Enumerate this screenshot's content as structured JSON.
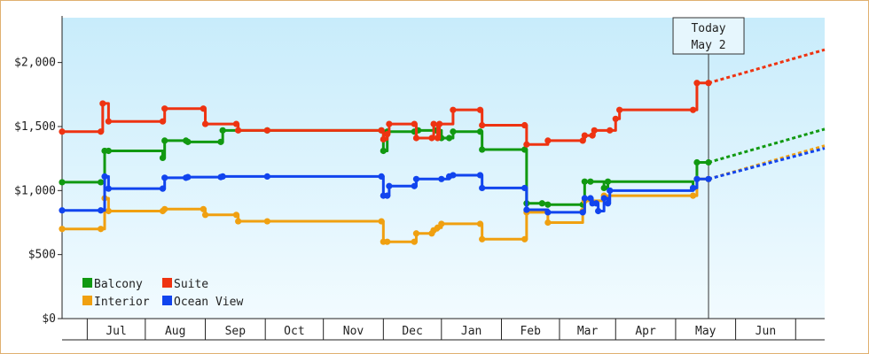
{
  "chart_data": {
    "type": "line",
    "step": true,
    "title": "",
    "xlabel": "",
    "ylabel": "",
    "x_range": [
      "2022-06-02",
      "2023-07-01"
    ],
    "ylim": [
      0,
      2350
    ],
    "yticks": [
      0,
      500,
      1000,
      1500,
      2000
    ],
    "ytick_labels": [
      "$0",
      "$500",
      "$1,000",
      "$1,500",
      "$2,000"
    ],
    "month_ticks": [
      {
        "label": "Jul",
        "start": "2022-06-15",
        "end": "2022-07-15"
      },
      {
        "label": "Aug",
        "start": "2022-07-15",
        "end": "2022-08-15"
      },
      {
        "label": "Sep",
        "start": "2022-08-15",
        "end": "2022-09-15"
      },
      {
        "label": "Oct",
        "start": "2022-09-15",
        "end": "2022-10-15"
      },
      {
        "label": "Nov",
        "start": "2022-10-15",
        "end": "2022-11-15"
      },
      {
        "label": "Dec",
        "start": "2022-11-15",
        "end": "2022-12-15"
      },
      {
        "label": "Jan",
        "start": "2022-12-15",
        "end": "2023-01-15"
      },
      {
        "label": "Feb",
        "start": "2023-01-15",
        "end": "2023-02-14"
      },
      {
        "label": "Mar",
        "start": "2023-02-14",
        "end": "2023-03-15"
      },
      {
        "label": "Apr",
        "start": "2023-03-15",
        "end": "2023-04-15"
      },
      {
        "label": "May",
        "start": "2023-04-15",
        "end": "2023-05-16"
      },
      {
        "label": "Jun",
        "start": "2023-05-16",
        "end": "2023-06-16"
      }
    ],
    "month_boundaries": [
      "2022-06-15",
      "2022-07-15",
      "2022-08-15",
      "2022-09-15",
      "2022-10-15",
      "2022-11-15",
      "2022-12-15",
      "2023-01-15",
      "2023-02-14",
      "2023-03-15",
      "2023-04-15",
      "2023-05-16",
      "2023-06-16"
    ],
    "today": {
      "date": "2023-05-02",
      "line1": "Today",
      "line2": "May 2"
    },
    "legend": {
      "placement": "bottom-left"
    },
    "series": [
      {
        "name": "Balcony",
        "color": "#119911",
        "x": [
          "2022-06-02",
          "2022-06-22",
          "2022-06-24",
          "2022-06-26",
          "2022-07-24",
          "2022-07-25",
          "2022-08-05",
          "2022-08-06",
          "2022-08-23",
          "2022-08-24",
          "2022-09-16",
          "2022-11-14",
          "2022-11-15",
          "2022-11-17",
          "2022-12-01",
          "2022-12-03",
          "2022-12-12",
          "2022-12-15",
          "2022-12-19",
          "2022-12-21",
          "2023-01-04",
          "2023-01-05",
          "2023-01-27",
          "2023-01-28",
          "2023-02-05",
          "2023-02-08",
          "2023-02-26",
          "2023-02-27",
          "2023-03-02",
          "2023-03-09",
          "2023-03-11",
          "2023-04-24",
          "2023-04-26",
          "2023-05-02"
        ],
        "values": [
          1065,
          1065,
          1310,
          1310,
          1255,
          1390,
          1390,
          1380,
          1380,
          1470,
          1470,
          1470,
          1310,
          1460,
          1460,
          1470,
          1470,
          1410,
          1410,
          1460,
          1460,
          1320,
          1320,
          900,
          900,
          890,
          890,
          1070,
          1070,
          1020,
          1070,
          1020,
          1220,
          1220
        ]
      },
      {
        "name": "Suite",
        "color": "#ee3311",
        "x": [
          "2022-06-02",
          "2022-06-22",
          "2022-06-23",
          "2022-06-26",
          "2022-07-24",
          "2022-07-25",
          "2022-08-14",
          "2022-08-15",
          "2022-08-31",
          "2022-09-01",
          "2022-09-16",
          "2022-11-14",
          "2022-11-15",
          "2022-11-17",
          "2022-11-18",
          "2022-12-01",
          "2022-12-02",
          "2022-12-10",
          "2022-12-11",
          "2022-12-13",
          "2022-12-14",
          "2022-12-21",
          "2023-01-04",
          "2023-01-05",
          "2023-01-27",
          "2023-01-28",
          "2023-02-08",
          "2023-02-26",
          "2023-02-27",
          "2023-03-03",
          "2023-03-04",
          "2023-03-12",
          "2023-03-15",
          "2023-03-17",
          "2023-04-24",
          "2023-04-26",
          "2023-05-02"
        ],
        "values": [
          1460,
          1460,
          1680,
          1540,
          1540,
          1640,
          1640,
          1520,
          1520,
          1470,
          1470,
          1470,
          1400,
          1440,
          1520,
          1520,
          1410,
          1410,
          1520,
          1410,
          1520,
          1630,
          1630,
          1510,
          1510,
          1360,
          1390,
          1390,
          1430,
          1430,
          1470,
          1470,
          1560,
          1630,
          1630,
          1840,
          1840
        ]
      },
      {
        "name": "Interior",
        "color": "#f0a010",
        "x": [
          "2022-06-02",
          "2022-06-22",
          "2022-06-24",
          "2022-06-26",
          "2022-07-24",
          "2022-07-25",
          "2022-08-14",
          "2022-08-15",
          "2022-08-31",
          "2022-09-01",
          "2022-09-16",
          "2022-11-14",
          "2022-11-15",
          "2022-11-17",
          "2022-12-01",
          "2022-12-02",
          "2022-12-10",
          "2022-12-11",
          "2022-12-13",
          "2022-12-15",
          "2023-01-04",
          "2023-01-05",
          "2023-01-27",
          "2023-01-28",
          "2023-02-08",
          "2023-02-26",
          "2023-02-27",
          "2023-03-09",
          "2023-04-24",
          "2023-04-26",
          "2023-05-02"
        ],
        "values": [
          700,
          700,
          940,
          840,
          840,
          855,
          855,
          810,
          810,
          760,
          760,
          760,
          600,
          600,
          600,
          665,
          665,
          690,
          710,
          740,
          740,
          620,
          620,
          830,
          750,
          840,
          920,
          960,
          960,
          1090,
          1090
        ]
      },
      {
        "name": "Ocean View",
        "color": "#1144ee",
        "x": [
          "2022-06-02",
          "2022-06-22",
          "2022-06-24",
          "2022-06-26",
          "2022-07-24",
          "2022-07-25",
          "2022-08-05",
          "2022-08-06",
          "2022-08-23",
          "2022-08-24",
          "2022-09-16",
          "2022-11-14",
          "2022-11-15",
          "2022-11-17",
          "2022-11-18",
          "2022-12-01",
          "2022-12-02",
          "2022-12-15",
          "2022-12-19",
          "2022-12-21",
          "2023-01-04",
          "2023-01-05",
          "2023-01-27",
          "2023-01-28",
          "2023-02-08",
          "2023-02-26",
          "2023-02-27",
          "2023-03-02",
          "2023-03-03",
          "2023-03-05",
          "2023-03-06",
          "2023-03-09",
          "2023-03-11",
          "2023-03-12",
          "2023-04-24",
          "2023-04-26",
          "2023-05-02"
        ],
        "values": [
          845,
          845,
          1110,
          1015,
          1015,
          1100,
          1100,
          1105,
          1105,
          1110,
          1110,
          1110,
          960,
          960,
          1035,
          1035,
          1090,
          1090,
          1110,
          1120,
          1120,
          1020,
          1020,
          850,
          830,
          830,
          940,
          940,
          900,
          900,
          840,
          940,
          900,
          1000,
          1020,
          1090,
          1090
        ]
      }
    ],
    "forecast": [
      {
        "name": "Suite",
        "from": [
          "2023-05-02",
          1840
        ],
        "to": [
          "2023-07-01",
          2100
        ]
      },
      {
        "name": "Balcony",
        "from": [
          "2023-05-02",
          1220
        ],
        "to": [
          "2023-07-01",
          1480
        ]
      },
      {
        "name": "Interior",
        "from": [
          "2023-05-02",
          1090
        ],
        "to": [
          "2023-07-01",
          1350
        ]
      },
      {
        "name": "Ocean View",
        "from": [
          "2023-05-02",
          1090
        ],
        "to": [
          "2023-07-01",
          1330
        ]
      }
    ]
  }
}
